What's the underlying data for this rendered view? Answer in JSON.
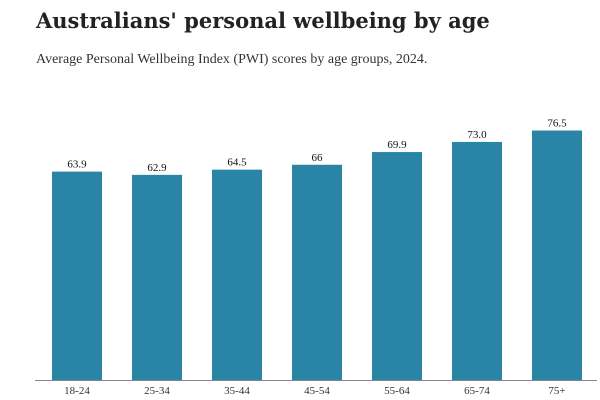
{
  "chart_data": {
    "type": "bar",
    "title": "Australians' personal wellbeing by age",
    "subtitle": "Average Personal Wellbeing Index (PWI) scores by age groups, 2024.",
    "categories": [
      "18-24",
      "25-34",
      "35-44",
      "45-54",
      "55-64",
      "65-74",
      "75+"
    ],
    "values": [
      63.9,
      62.9,
      64.5,
      66,
      69.9,
      73.0,
      76.5
    ],
    "value_labels": [
      "63.9",
      "62.9",
      "64.5",
      "66",
      "69.9",
      "73.0",
      "76.5"
    ],
    "xlabel": "",
    "ylabel": "",
    "ylim": [
      0,
      78.5
    ],
    "grid": false,
    "legend": "none",
    "bar_color": "#2a84a5",
    "axis_color": "#888888"
  }
}
